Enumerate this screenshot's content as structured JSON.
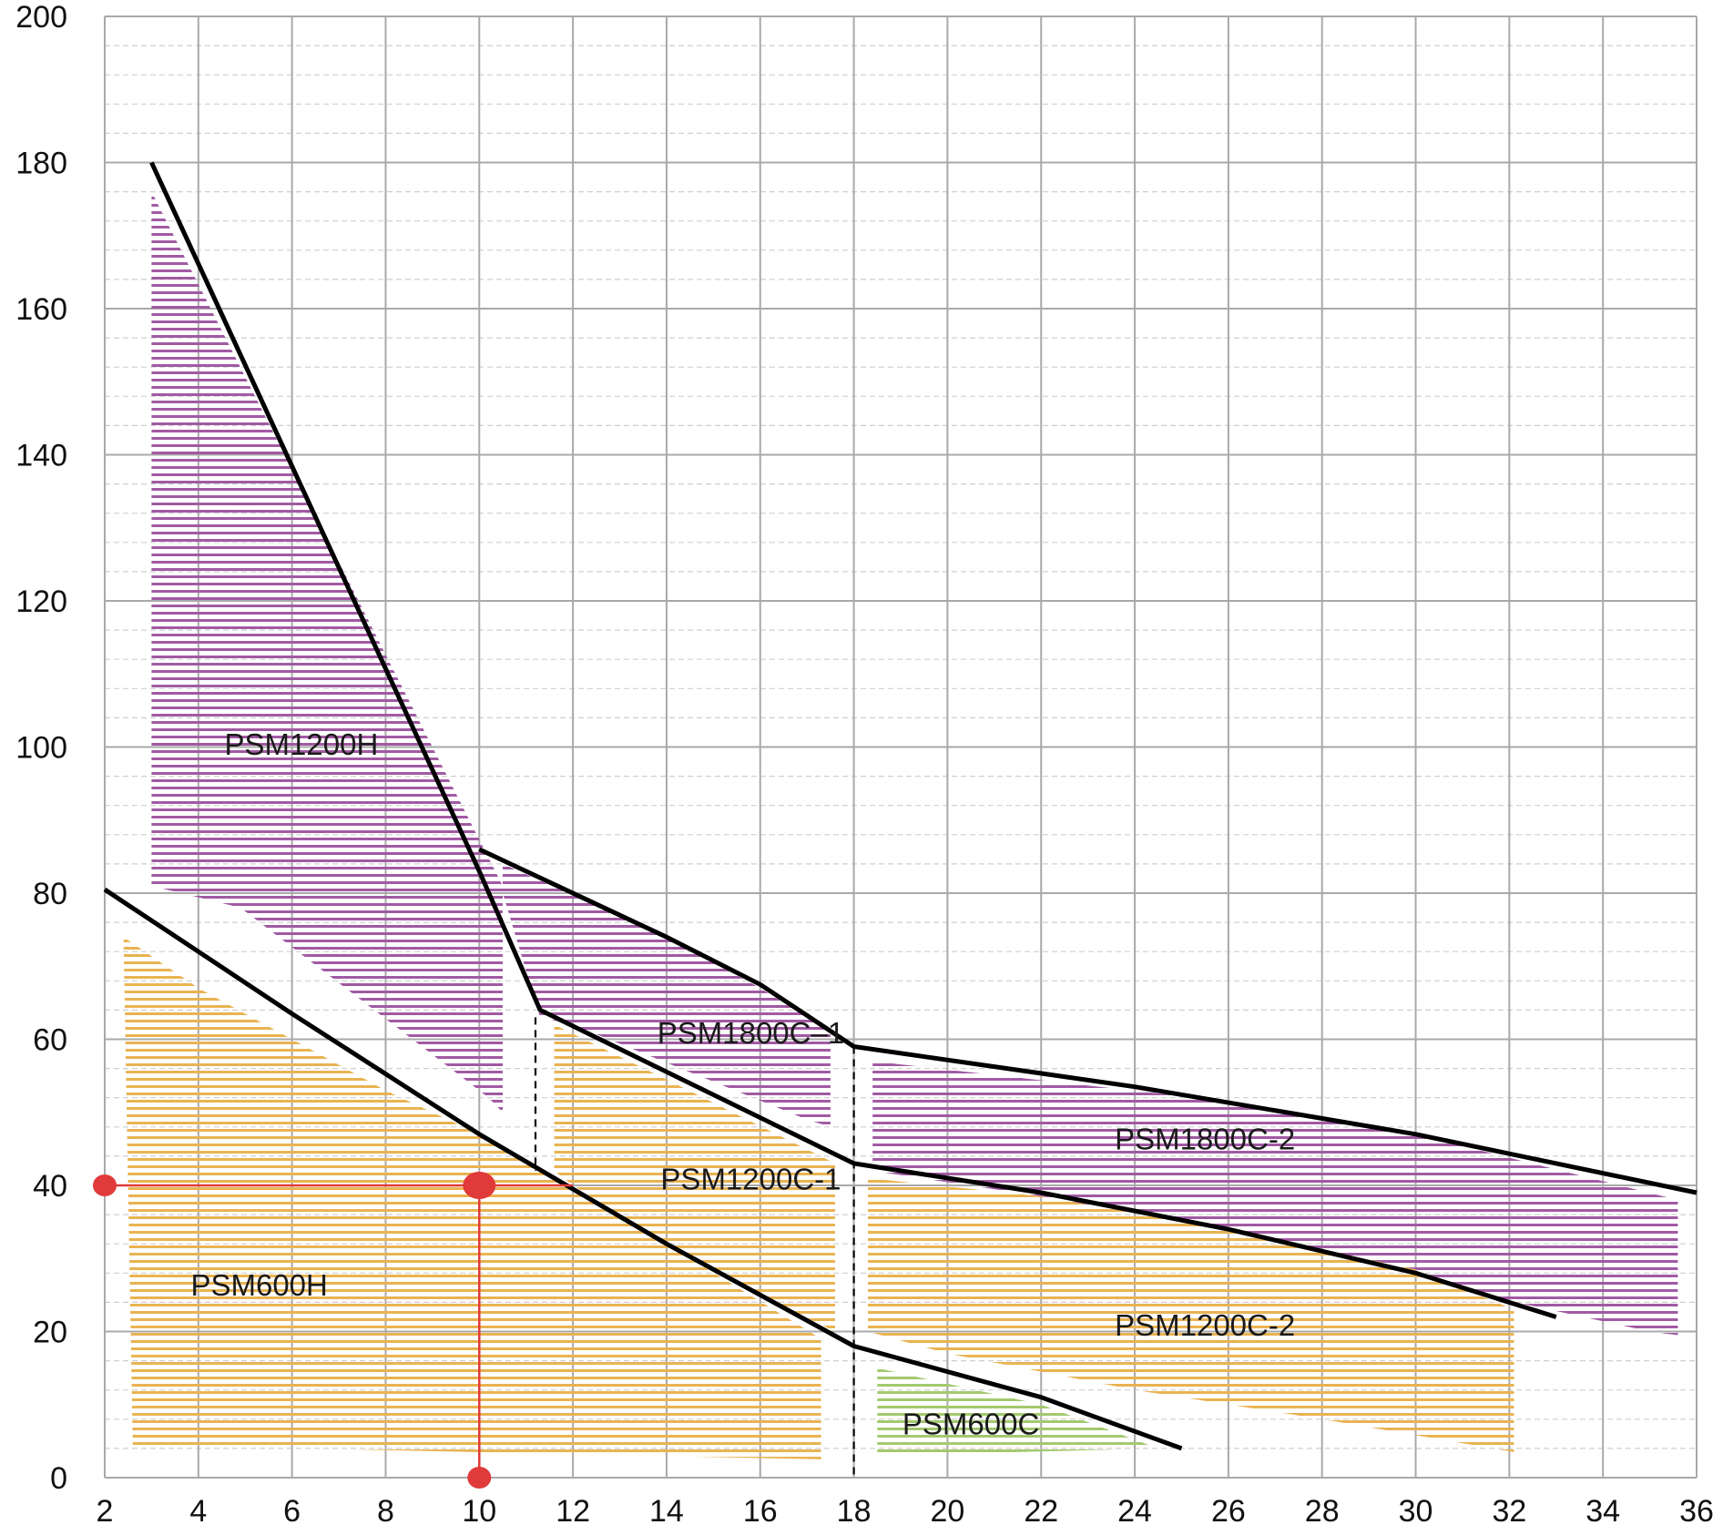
{
  "chart_data": {
    "type": "line",
    "title": "",
    "xlabel": "",
    "ylabel": "",
    "xlim": [
      2,
      36
    ],
    "ylim": [
      0,
      200
    ],
    "x_ticks": [
      "2",
      "4",
      "6",
      "8",
      "10",
      "12",
      "14",
      "16",
      "18",
      "20",
      "22",
      "24",
      "26",
      "28",
      "30",
      "32",
      "34",
      "36"
    ],
    "y_ticks": [
      "0",
      "20",
      "40",
      "60",
      "80",
      "100",
      "120",
      "140",
      "160",
      "180",
      "200"
    ],
    "grid": true,
    "minor_gridlines_y": 4,
    "colors": {
      "boundary_line": "#000000",
      "purple_region": "#9a4d9c",
      "orange_region": "#e8b24e",
      "green_region": "#9cc56a",
      "marker": "#e03a3a",
      "grid_major": "#a9a9a9",
      "grid_minor": "#cfcfcf"
    },
    "boundary_lines": [
      {
        "points": [
          [
            3,
            180
          ],
          [
            10,
            83
          ],
          [
            11.3,
            64
          ],
          [
            18,
            43
          ],
          [
            22,
            39
          ],
          [
            26,
            34
          ],
          [
            30,
            28
          ],
          [
            33,
            22
          ]
        ]
      },
      {
        "points": [
          [
            2,
            80.5
          ],
          [
            6,
            63.5
          ],
          [
            10,
            47
          ],
          [
            14,
            32
          ],
          [
            18,
            18
          ],
          [
            22,
            11
          ],
          [
            25,
            4
          ]
        ]
      },
      {
        "points": [
          [
            10,
            86
          ],
          [
            14,
            74
          ],
          [
            16,
            67.5
          ],
          [
            18,
            59
          ],
          [
            24,
            53.5
          ],
          [
            30,
            47
          ],
          [
            36,
            39
          ]
        ]
      }
    ],
    "dashed_lines": [
      {
        "points": [
          [
            11.2,
            63
          ],
          [
            11.2,
            42
          ]
        ]
      },
      {
        "points": [
          [
            18,
            59
          ],
          [
            18,
            0
          ]
        ]
      }
    ],
    "regions": [
      {
        "label": "PSM1200H",
        "color": "purple",
        "label_at": [
          6.2,
          100
        ],
        "polygon": [
          [
            3,
            176
          ],
          [
            10.5,
            81
          ],
          [
            10.5,
            50
          ],
          [
            10.2,
            52
          ],
          [
            4.9,
            78
          ],
          [
            3,
            81
          ]
        ]
      },
      {
        "label": "PSM1800C–1",
        "color": "purple",
        "label_at": [
          15.8,
          60.5
        ],
        "polygon": [
          [
            10.5,
            84
          ],
          [
            14,
            74
          ],
          [
            16,
            67
          ],
          [
            17.5,
            61
          ],
          [
            17.5,
            48
          ],
          [
            17,
            49
          ],
          [
            12,
            62
          ],
          [
            11.3,
            63
          ],
          [
            10.5,
            80
          ]
        ]
      },
      {
        "label": "PSM1800C-2",
        "color": "purple",
        "label_at": [
          25.5,
          46
        ],
        "polygon": [
          [
            18.4,
            57
          ],
          [
            26,
            51.5
          ],
          [
            30,
            47
          ],
          [
            35.6,
            38
          ],
          [
            35.6,
            19.5
          ],
          [
            35,
            20
          ],
          [
            30,
            27
          ],
          [
            26,
            33.5
          ],
          [
            22,
            38.5
          ],
          [
            18.4,
            42
          ]
        ]
      },
      {
        "label": "PSM600H",
        "color": "orange",
        "label_at": [
          5.3,
          26
        ],
        "polygon": [
          [
            2.4,
            74
          ],
          [
            4,
            67
          ],
          [
            8,
            53
          ],
          [
            10,
            47
          ],
          [
            14,
            32
          ],
          [
            17.3,
            19
          ],
          [
            17.3,
            2.5
          ],
          [
            2.6,
            4.5
          ]
        ]
      },
      {
        "label": "PSM1200C-1",
        "color": "orange",
        "label_at": [
          15.8,
          40.5
        ],
        "polygon": [
          [
            11.6,
            62
          ],
          [
            14,
            54.5
          ],
          [
            17.6,
            43
          ],
          [
            17.6,
            20
          ],
          [
            16,
            25
          ],
          [
            14,
            32
          ],
          [
            12,
            40
          ],
          [
            11.6,
            42
          ]
        ]
      },
      {
        "label": "PSM1200C-2",
        "color": "orange",
        "label_at": [
          25.5,
          20.5
        ],
        "polygon": [
          [
            18.3,
            41
          ],
          [
            22,
            38.5
          ],
          [
            26,
            34
          ],
          [
            30,
            28.5
          ],
          [
            32.1,
            23
          ],
          [
            32.1,
            3.5
          ],
          [
            28,
            8
          ],
          [
            24,
            12
          ],
          [
            20,
            17
          ],
          [
            18.3,
            20
          ]
        ]
      },
      {
        "label": "PSM600C",
        "color": "green",
        "label_at": [
          20.5,
          7
        ],
        "polygon": [
          [
            18.5,
            15
          ],
          [
            22,
            10
          ],
          [
            24.5,
            4
          ],
          [
            18.5,
            3
          ]
        ]
      }
    ],
    "markers": [
      {
        "x": 2,
        "y": 40
      },
      {
        "x": 10,
        "y": 40
      },
      {
        "x": 10,
        "y": 0
      }
    ],
    "reference_lines": [
      {
        "points": [
          [
            2,
            40
          ],
          [
            12,
            40
          ]
        ]
      },
      {
        "points": [
          [
            10,
            41
          ],
          [
            10,
            0
          ]
        ]
      }
    ]
  }
}
